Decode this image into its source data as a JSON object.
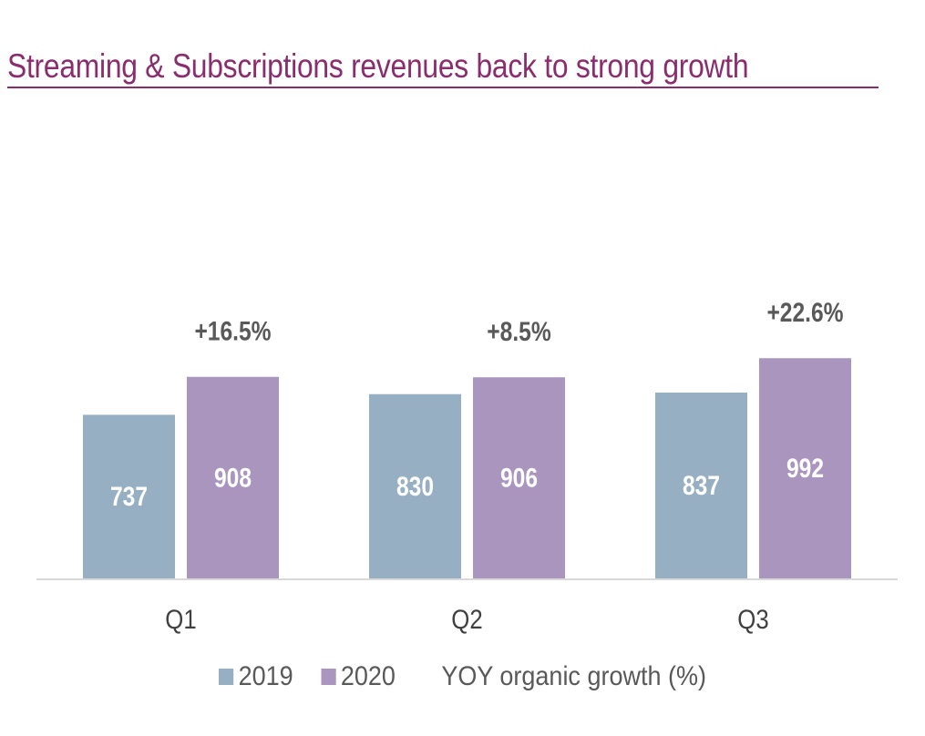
{
  "colors": {
    "title": "#8a2d6e",
    "series_2019": "#97afc3",
    "series_2020": "#a995be",
    "axis": "#d9d9d9"
  },
  "chart_data": {
    "type": "bar",
    "title": "Streaming & Subscriptions revenues back to strong growth",
    "categories": [
      "Q1",
      "Q2",
      "Q3"
    ],
    "series": [
      {
        "name": "2019",
        "values": [
          737,
          830,
          837
        ]
      },
      {
        "name": "2020",
        "values": [
          908,
          906,
          992
        ]
      }
    ],
    "annotations": {
      "name": "YOY organic growth (%)",
      "values": [
        "+16.5%",
        "+8.5%",
        "+22.6%"
      ]
    },
    "ylim": [
      0,
      1000
    ],
    "grid": false,
    "legend": "bottom"
  }
}
